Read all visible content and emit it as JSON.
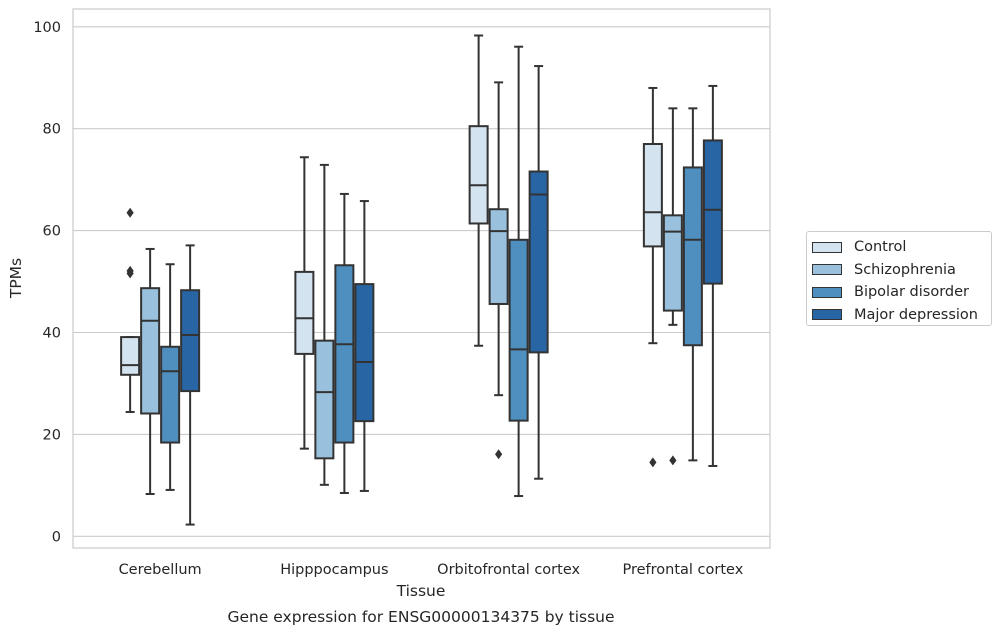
{
  "colors": {
    "Control": "#d4e3f0",
    "Schizophrenia": "#99c1dd",
    "Bipolar disorder": "#4f8fc0",
    "Major depression": "#2865a4",
    "grid": "#cccccc",
    "box_line": "#333333"
  },
  "chart_data": {
    "type": "box",
    "title": "Gene expression for ENSG00000134375 by tissue",
    "xlabel": "Tissue",
    "ylabel": "TPMs",
    "ylim": [
      -2.3,
      103.5
    ],
    "yticks": [
      0,
      20,
      40,
      60,
      80,
      100
    ],
    "grid": "horizontal",
    "legend_position": "right",
    "categories": [
      "Cerebellum",
      "Hipppocampus",
      "Orbitofrontal cortex",
      "Prefrontal cortex"
    ],
    "series": [
      {
        "name": "Control",
        "boxes": [
          {
            "whislo": 24.4,
            "q1": 31.7,
            "med": 33.6,
            "q3": 39.1,
            "whishi": 39.1,
            "fliers": [
              63.5,
              52.1,
              51.6
            ]
          },
          {
            "whislo": 17.2,
            "q1": 35.8,
            "med": 42.8,
            "q3": 51.9,
            "whishi": 74.4,
            "fliers": []
          },
          {
            "whislo": 37.4,
            "q1": 61.4,
            "med": 68.9,
            "q3": 80.5,
            "whishi": 98.3,
            "fliers": []
          },
          {
            "whislo": 37.9,
            "q1": 56.9,
            "med": 63.6,
            "q3": 77.0,
            "whishi": 88.0,
            "fliers": [
              14.5
            ]
          }
        ]
      },
      {
        "name": "Schizophrenia",
        "boxes": [
          {
            "whislo": 8.3,
            "q1": 24.1,
            "med": 42.3,
            "q3": 48.7,
            "whishi": 56.4,
            "fliers": []
          },
          {
            "whislo": 10.1,
            "q1": 15.3,
            "med": 28.3,
            "q3": 38.4,
            "whishi": 72.9,
            "fliers": []
          },
          {
            "whislo": 27.7,
            "q1": 45.6,
            "med": 59.9,
            "q3": 64.2,
            "whishi": 89.1,
            "fliers": [
              16.1
            ]
          },
          {
            "whislo": 41.5,
            "q1": 44.3,
            "med": 59.8,
            "q3": 63.0,
            "whishi": 84.0,
            "fliers": [
              14.9
            ]
          }
        ]
      },
      {
        "name": "Bipolar disorder",
        "boxes": [
          {
            "whislo": 9.1,
            "q1": 18.4,
            "med": 32.4,
            "q3": 37.2,
            "whishi": 53.4,
            "fliers": []
          },
          {
            "whislo": 8.5,
            "q1": 18.4,
            "med": 37.7,
            "q3": 53.2,
            "whishi": 67.2,
            "fliers": []
          },
          {
            "whislo": 7.9,
            "q1": 22.7,
            "med": 36.7,
            "q3": 58.2,
            "whishi": 96.1,
            "fliers": []
          },
          {
            "whislo": 14.9,
            "q1": 37.5,
            "med": 58.2,
            "q3": 72.4,
            "whishi": 84.0,
            "fliers": []
          }
        ]
      },
      {
        "name": "Major depression",
        "boxes": [
          {
            "whislo": 2.3,
            "q1": 28.5,
            "med": 39.5,
            "q3": 48.3,
            "whishi": 57.1,
            "fliers": []
          },
          {
            "whislo": 8.9,
            "q1": 22.6,
            "med": 34.2,
            "q3": 49.5,
            "whishi": 65.8,
            "fliers": []
          },
          {
            "whislo": 11.3,
            "q1": 36.1,
            "med": 67.1,
            "q3": 71.6,
            "whishi": 92.3,
            "fliers": []
          },
          {
            "whislo": 13.8,
            "q1": 49.6,
            "med": 64.1,
            "q3": 77.7,
            "whishi": 88.4,
            "fliers": []
          }
        ]
      }
    ]
  }
}
